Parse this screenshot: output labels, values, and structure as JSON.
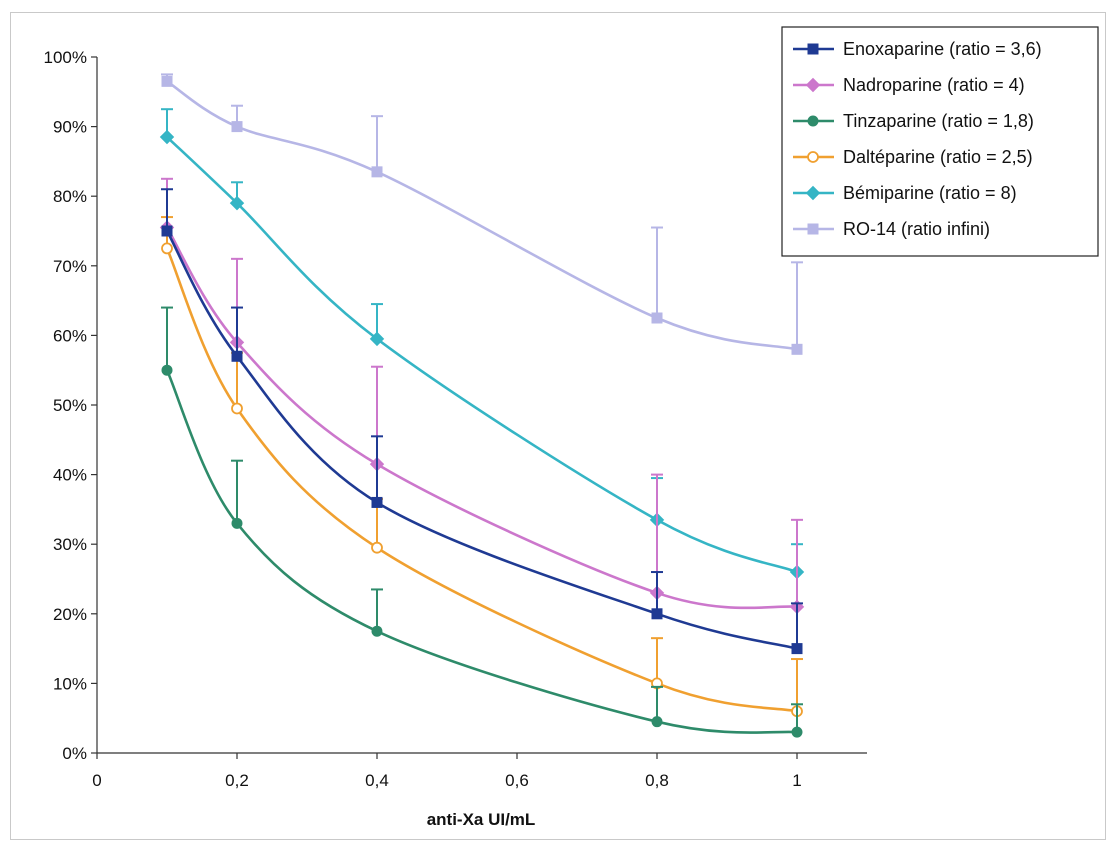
{
  "chart_data": {
    "type": "line",
    "xlabel": "anti-Xa UI/mL",
    "ylabel": "",
    "xlim": [
      0,
      1.1
    ],
    "ylim": [
      0,
      100
    ],
    "x_ticks": [
      0,
      0.2,
      0.4,
      0.6,
      0.8,
      1
    ],
    "x_tick_labels": [
      "0",
      "0,2",
      "0,4",
      "0,6",
      "0,8",
      "1"
    ],
    "y_ticks": [
      0,
      10,
      20,
      30,
      40,
      50,
      60,
      70,
      80,
      90,
      100
    ],
    "y_tick_labels": [
      "0%",
      "10%",
      "20%",
      "30%",
      "40%",
      "50%",
      "60%",
      "70%",
      "80%",
      "90%",
      "100%"
    ],
    "grid": false,
    "legend_position": "top-right",
    "x": [
      0.1,
      0.2,
      0.4,
      0.8,
      1
    ],
    "series": [
      {
        "name": "Enoxaparine (ratio = 3,6)",
        "color": "#1f3a93",
        "marker": "square",
        "values": [
          75,
          57,
          36,
          20,
          15
        ],
        "error_plus": [
          6,
          7,
          9.5,
          6,
          6.5
        ]
      },
      {
        "name": "Nadroparine (ratio = 4)",
        "color": "#cc77cc",
        "marker": "diamond",
        "values": [
          75.5,
          59,
          41.5,
          23,
          21
        ],
        "error_plus": [
          7,
          12,
          14,
          17,
          12.5
        ]
      },
      {
        "name": "Tinzaparine (ratio = 1,8)",
        "color": "#2e8b6a",
        "marker": "circle",
        "values": [
          55,
          33,
          17.5,
          4.5,
          3
        ],
        "error_plus": [
          9,
          9,
          6,
          5,
          4
        ]
      },
      {
        "name": "Daltéparine (ratio = 2,5)",
        "color": "#f0a030",
        "marker": "open-circle",
        "values": [
          72.5,
          49.5,
          29.5,
          10,
          6
        ],
        "error_plus": [
          4.5,
          8,
          7,
          6.5,
          7.5
        ]
      },
      {
        "name": "Bémiparine (ratio = 8)",
        "color": "#35b5c5",
        "marker": "diamond",
        "values": [
          88.5,
          79,
          59.5,
          33.5,
          26
        ],
        "error_plus": [
          4,
          3,
          5,
          6,
          4
        ]
      },
      {
        "name": "RO-14 (ratio infini)",
        "color": "#b6b6e6",
        "marker": "square",
        "values": [
          96.5,
          90,
          83.5,
          62.5,
          58
        ],
        "error_plus": [
          1,
          3,
          8,
          13,
          12.5
        ]
      }
    ]
  }
}
